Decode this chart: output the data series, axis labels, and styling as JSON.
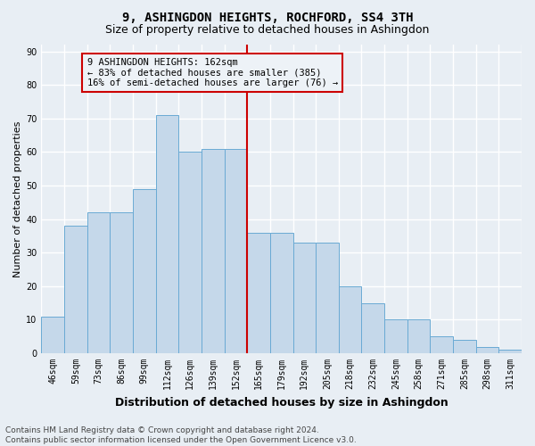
{
  "title": "9, ASHINGDON HEIGHTS, ROCHFORD, SS4 3TH",
  "subtitle": "Size of property relative to detached houses in Ashingdon",
  "xlabel": "Distribution of detached houses by size in Ashingdon",
  "ylabel": "Number of detached properties",
  "bar_labels": [
    "46sqm",
    "59sqm",
    "73sqm",
    "86sqm",
    "99sqm",
    "112sqm",
    "126sqm",
    "139sqm",
    "152sqm",
    "165sqm",
    "179sqm",
    "192sqm",
    "205sqm",
    "218sqm",
    "232sqm",
    "245sqm",
    "258sqm",
    "271sqm",
    "285sqm",
    "298sqm",
    "311sqm"
  ],
  "bar_values": [
    11,
    38,
    42,
    42,
    49,
    71,
    60,
    61,
    61,
    36,
    36,
    33,
    33,
    20,
    15,
    10,
    10,
    5,
    4,
    2,
    1
  ],
  "bar_color": "#c5d8ea",
  "bar_edge_color": "#6aaad4",
  "vline_color": "#cc0000",
  "vline_x_index": 9,
  "annotation_text": "9 ASHINGDON HEIGHTS: 162sqm\n← 83% of detached houses are smaller (385)\n16% of semi-detached houses are larger (76) →",
  "annotation_box_facecolor": "#edf2f7",
  "annotation_box_edgecolor": "#cc0000",
  "ylim_max": 92,
  "yticks": [
    0,
    10,
    20,
    30,
    40,
    50,
    60,
    70,
    80,
    90
  ],
  "background_color": "#e8eef4",
  "grid_color": "#ffffff",
  "title_fontsize": 10,
  "subtitle_fontsize": 9,
  "ylabel_fontsize": 8,
  "xlabel_fontsize": 9,
  "tick_fontsize": 7,
  "annot_fontsize": 7.5,
  "footer_fontsize": 6.5,
  "footer_line1": "Contains HM Land Registry data © Crown copyright and database right 2024.",
  "footer_line2": "Contains public sector information licensed under the Open Government Licence v3.0."
}
